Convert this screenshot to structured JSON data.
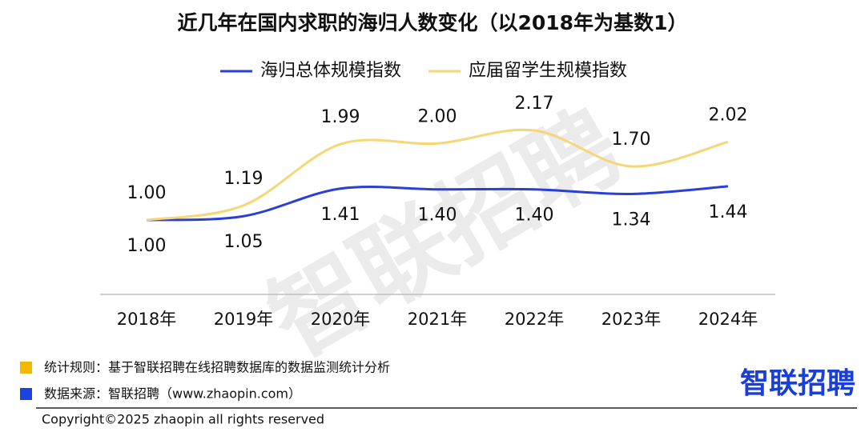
{
  "chart_data": {
    "type": "line",
    "title": "近几年在国内求职的海归人数变化（以2018年为基数1）",
    "categories": [
      "2018年",
      "2019年",
      "2020年",
      "2021年",
      "2022年",
      "2023年",
      "2024年"
    ],
    "series": [
      {
        "name": "海归总体规模指数",
        "color": "#2a3fd8",
        "label_side": "below",
        "values": [
          1,
          1.05,
          1.41,
          1.4,
          1.4,
          1.34,
          1.44
        ],
        "value_labels": [
          "1.00",
          "1.05",
          "1.41",
          "1.40",
          "1.40",
          "1.34",
          "1.44"
        ]
      },
      {
        "name": "应届留学生规模指数",
        "color": "#f6d676",
        "label_side": "above",
        "values": [
          1,
          1.19,
          1.99,
          2,
          2.17,
          1.7,
          2.02
        ],
        "value_labels": [
          "1.00",
          "1.19",
          "1.99",
          "2.00",
          "2.17",
          "1.70",
          "2.02"
        ]
      }
    ],
    "legend": "top",
    "watermark": "智联招聘",
    "notes": [
      {
        "text": "统计规则：基于智联招聘在线招聘数据库的数据监测统计分析",
        "color": "#f5b800"
      },
      {
        "text": "数据来源：智联招聘（www.zhaopin.com）",
        "color": "#1a44e0"
      }
    ],
    "logo": "智联招聘",
    "copyright": "Copyright©2025 zhaopin all rights reserved"
  }
}
